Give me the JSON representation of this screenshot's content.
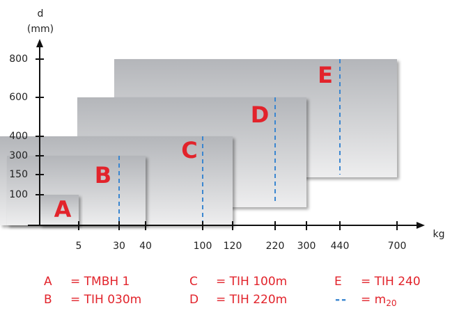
{
  "axes": {
    "y_label": "d",
    "y_unit": "(mm)",
    "x_label": "kg",
    "xticks": [
      5,
      30,
      40,
      100,
      120,
      220,
      300,
      440,
      700
    ],
    "yticks": [
      100,
      150,
      300,
      400,
      600,
      800
    ]
  },
  "boxes": [
    {
      "label": "E",
      "max_load": 700,
      "max_diameter": 800,
      "m20": 440
    },
    {
      "label": "D",
      "max_load": 300,
      "max_diameter": 600,
      "m20": 220
    },
    {
      "label": "C",
      "max_load": 120,
      "max_diameter": 400,
      "m20": 100
    },
    {
      "label": "B",
      "max_load": 40,
      "max_diameter": 300,
      "m20": 30
    },
    {
      "label": "A",
      "max_load": 5,
      "max_diameter": 100,
      "m20": null
    }
  ],
  "legend": [
    {
      "key": "A",
      "text": "= TMBH 1"
    },
    {
      "key": "B",
      "text": "= TIH 030m"
    },
    {
      "key": "C",
      "text": "= TIH 100m"
    },
    {
      "key": "D",
      "text": "= TIH 220m"
    },
    {
      "key": "E",
      "text": "= TIH 240"
    },
    {
      "key": "--",
      "text": "= m",
      "subscript": "20"
    }
  ]
}
